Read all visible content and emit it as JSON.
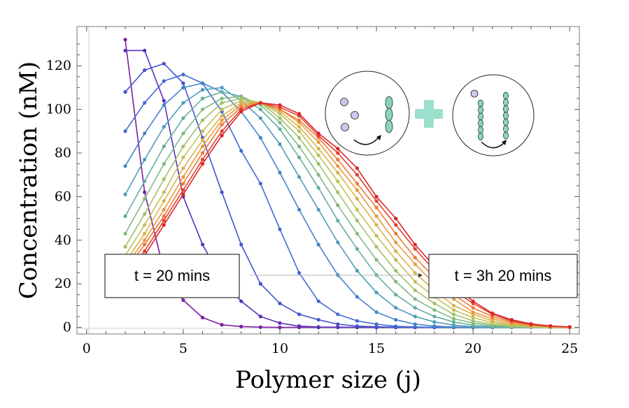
{
  "chart_data": {
    "type": "line",
    "xlabel": "Polymer size (j)",
    "ylabel": "Concentration (nM)",
    "xlim": [
      -0.5,
      25.5
    ],
    "ylim": [
      -3,
      138
    ],
    "xticks": [
      0,
      5,
      10,
      15,
      20,
      25
    ],
    "yticks": [
      0,
      20,
      40,
      60,
      80,
      100,
      120
    ],
    "grid": false,
    "x": [
      2,
      3,
      4,
      5,
      6,
      7,
      8,
      9,
      10,
      11,
      12,
      13,
      14,
      15,
      16,
      17,
      18,
      19,
      20,
      21,
      22,
      23,
      24,
      25
    ],
    "series": [
      {
        "color": "#7a1ea0",
        "values": [
          132,
          62,
          26,
          12.5,
          4.5,
          1.2,
          0.4,
          0.1,
          0,
          0,
          0,
          0,
          0,
          0,
          0,
          0,
          0,
          0,
          0,
          0,
          0,
          0,
          0,
          0
        ]
      },
      {
        "color": "#5a30b8",
        "values": [
          127,
          127,
          104,
          60,
          38,
          22,
          12,
          5,
          2,
          0.6,
          0.2,
          0.1,
          0,
          0,
          0,
          0,
          0,
          0,
          0,
          0,
          0,
          0,
          0,
          0
        ]
      },
      {
        "color": "#4352cc",
        "values": [
          108,
          118,
          121,
          112,
          87,
          62,
          38,
          20,
          11,
          6,
          3.5,
          1.5,
          0.6,
          0.3,
          0.1,
          0,
          0,
          0,
          0,
          0,
          0,
          0,
          0,
          0
        ]
      },
      {
        "color": "#3e6ad2",
        "values": [
          90,
          103,
          113,
          116,
          112,
          99,
          81,
          66,
          45,
          25,
          12,
          6,
          3,
          1.5,
          0.5,
          0.2,
          0,
          0,
          0,
          0,
          0,
          0,
          0,
          0
        ]
      },
      {
        "color": "#4384c9",
        "values": [
          74,
          89,
          102,
          110,
          112,
          108,
          99,
          87,
          71,
          54,
          38,
          24,
          14,
          7,
          3.5,
          1.5,
          0.6,
          0.2,
          0,
          0,
          0,
          0,
          0,
          0
        ]
      },
      {
        "color": "#4e9cb8",
        "values": [
          61,
          77,
          92,
          103,
          109,
          110,
          104,
          96,
          84,
          69,
          54,
          39,
          26,
          16,
          9,
          5,
          2.5,
          1,
          0.3,
          0,
          0,
          0,
          0,
          0
        ]
      },
      {
        "color": "#63ae9e",
        "values": [
          51,
          67,
          83,
          96,
          105,
          108,
          106,
          100,
          91,
          78,
          64,
          49,
          36,
          24,
          15,
          9,
          5,
          2.5,
          1,
          0.4,
          0,
          0,
          0,
          0
        ]
      },
      {
        "color": "#80ba83",
        "values": [
          43,
          59,
          75,
          89,
          100,
          105,
          106,
          102,
          94,
          83,
          70,
          56,
          43,
          31,
          21,
          13,
          8,
          4,
          2,
          0.8,
          0.3,
          0,
          0,
          0
        ]
      },
      {
        "color": "#a0c06a",
        "values": [
          37,
          52,
          68,
          83,
          95,
          103,
          105,
          103,
          96,
          87,
          75,
          62,
          49,
          37,
          26,
          17,
          11,
          6,
          3,
          1.4,
          0.6,
          0.2,
          0,
          0
        ]
      },
      {
        "color": "#bfc159",
        "values": [
          33,
          47,
          62,
          78,
          90,
          100,
          104,
          103,
          98,
          90,
          79,
          67,
          54,
          42,
          31,
          21,
          14,
          8,
          4.5,
          2.2,
          1,
          0.4,
          0.1,
          0
        ]
      },
      {
        "color": "#d8b44c",
        "values": [
          30,
          43,
          58,
          73,
          86,
          97,
          103,
          103,
          99,
          92,
          82,
          71,
          59,
          47,
          35,
          25,
          17,
          10,
          6,
          3,
          1.4,
          0.6,
          0.2,
          0
        ]
      },
      {
        "color": "#e89a40",
        "values": [
          28,
          40,
          54,
          69,
          83,
          95,
          102,
          103,
          100,
          94,
          85,
          74,
          63,
          51,
          39,
          29,
          20,
          13,
          7,
          4,
          2,
          0.8,
          0.3,
          0.1
        ]
      },
      {
        "color": "#ec7a36",
        "values": [
          26,
          38,
          51,
          66,
          80,
          93,
          101,
          103,
          100,
          95,
          87,
          77,
          66,
          55,
          43,
          32,
          23,
          15,
          9,
          5,
          2.5,
          1.1,
          0.4,
          0.1
        ]
      },
      {
        "color": "#e2402e",
        "values": [
          24,
          35,
          49,
          63,
          77,
          90,
          100,
          103,
          101,
          97,
          88,
          80,
          70,
          58,
          47,
          36,
          26,
          17,
          11,
          6,
          3,
          1.4,
          0.6,
          0.2
        ]
      },
      {
        "color": "#d9262a",
        "values": [
          22,
          33,
          47,
          61,
          75,
          88,
          99,
          103,
          102,
          98,
          89,
          82,
          73,
          60,
          50,
          38,
          28,
          19,
          12,
          6.5,
          3.5,
          1.6,
          0.7,
          0.2
        ]
      }
    ],
    "annotations": {
      "start_label": "t = 20 mins",
      "end_label": "t = 3h 20 mins"
    },
    "inset": {
      "accent_color": "#9be0cc",
      "monomer_color": "#d2c4ec",
      "polymer_color": "#86d6bd"
    }
  }
}
